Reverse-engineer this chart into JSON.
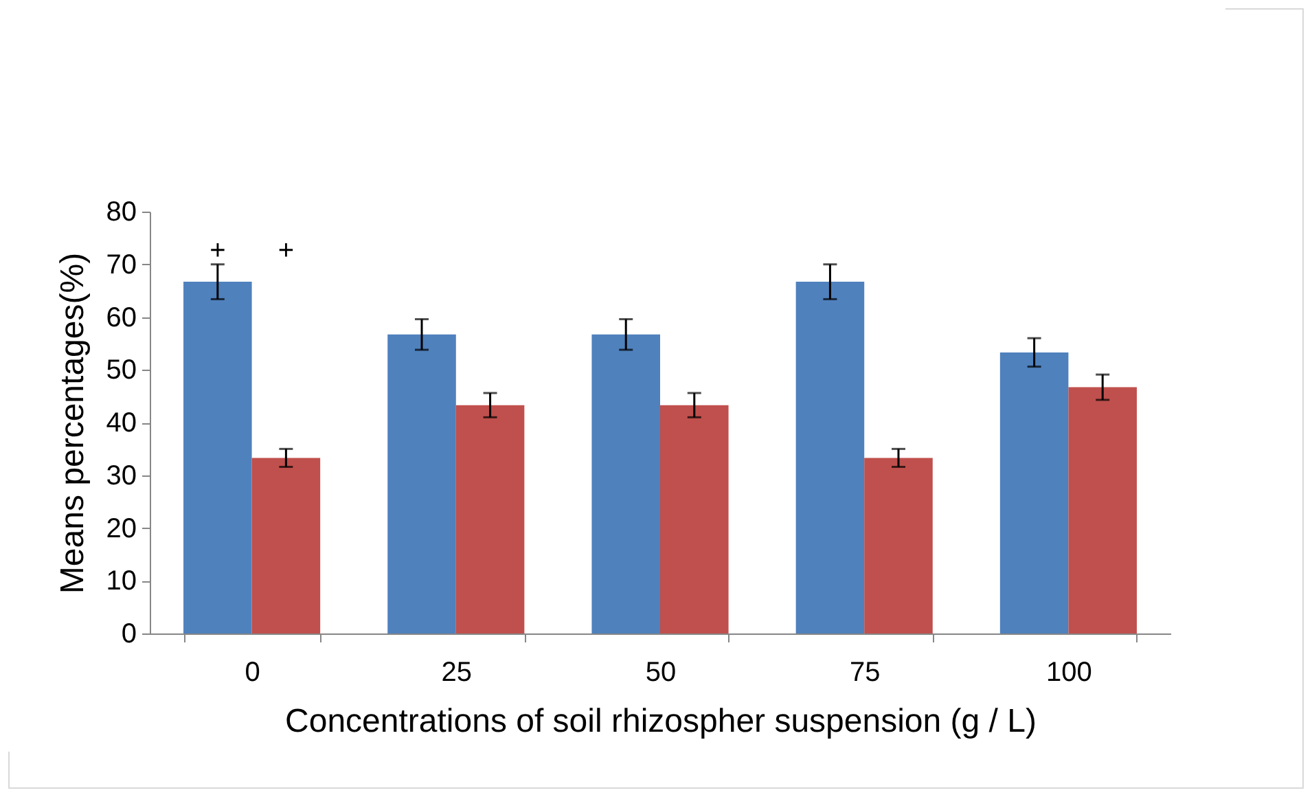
{
  "chart_data": {
    "type": "bar",
    "xlabel": "Concentrations of soil rhizospher suspension (g / L)",
    "ylabel": "Means percentages(%)",
    "categories": [
      "0",
      "25",
      "50",
      "75",
      "100"
    ],
    "series": [
      {
        "color": "#4f81bd",
        "values": [
          66.7,
          56.7,
          56.7,
          66.7,
          53.3
        ],
        "errors": [
          3.3,
          2.9,
          2.9,
          3.3,
          2.7
        ]
      },
      {
        "color": "#c0504d",
        "values": [
          33.3,
          43.3,
          43.3,
          33.3,
          46.7
        ],
        "errors": [
          1.7,
          2.3,
          2.3,
          1.7,
          2.4
        ]
      }
    ],
    "ylim": [
      0,
      80
    ],
    "yticks": [
      0,
      10,
      20,
      30,
      40,
      50,
      60,
      70,
      80
    ],
    "grid": false,
    "legend": false,
    "annotations": [
      "+",
      "+"
    ]
  }
}
